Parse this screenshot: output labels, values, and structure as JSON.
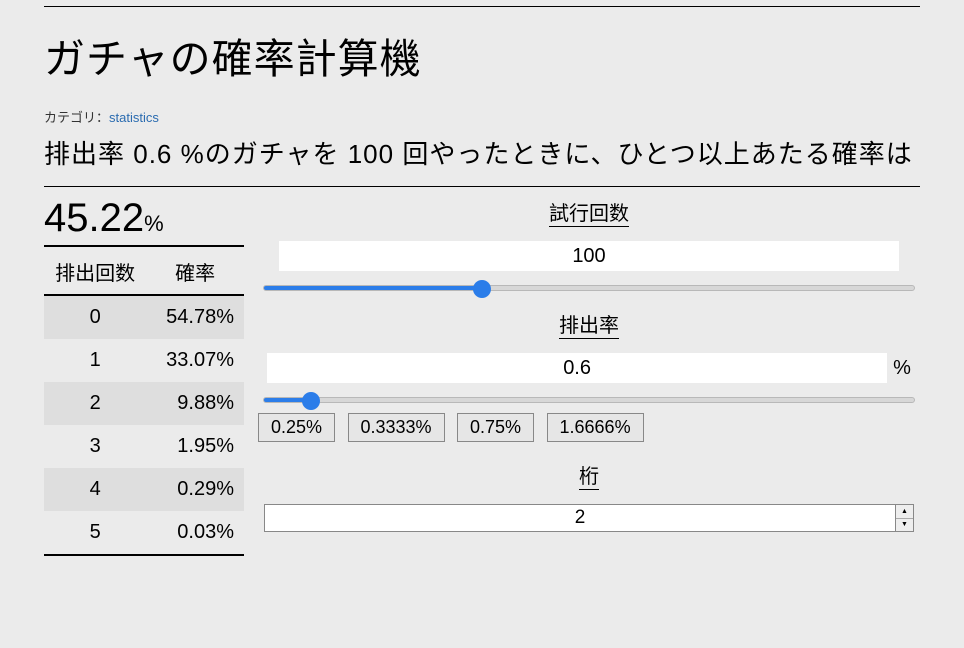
{
  "colors": {
    "page_bg": "#ebebeb",
    "link": "#2b6cb0",
    "slider_fill": "#2b7de9",
    "slider_track": "#d7d7d7",
    "stripe": "#dedede"
  },
  "title": "ガチャの確率計算機",
  "category": {
    "label": "カテゴリ：",
    "link_text": "statistics"
  },
  "summary": {
    "prefix": "排出率 ",
    "rate": "0.6",
    "rate_unit": " %のガチャを ",
    "trials": "100",
    "suffix": " 回やったときに、ひとつ以上あたる確率は"
  },
  "result": {
    "value": "45.22",
    "unit": "%"
  },
  "table": {
    "headers": {
      "count": "排出回数",
      "prob": "確率"
    },
    "rows": [
      {
        "n": "0",
        "p": "54.78%"
      },
      {
        "n": "1",
        "p": "33.07%"
      },
      {
        "n": "2",
        "p": "9.88%"
      },
      {
        "n": "3",
        "p": "1.95%"
      },
      {
        "n": "4",
        "p": "0.29%"
      },
      {
        "n": "5",
        "p": "0.03%"
      }
    ]
  },
  "controls": {
    "trials": {
      "label": "試行回数",
      "value": "100",
      "slider": {
        "min": 1,
        "max": 300,
        "value": 100,
        "fill_pct": 33
      }
    },
    "rate": {
      "label": "排出率",
      "value": "0.6",
      "unit": "%",
      "slider": {
        "min": 0,
        "max": 10,
        "value": 0.6,
        "fill_pct": 8
      },
      "presets": [
        "0.25%",
        "0.3333%",
        "0.75%",
        "1.6666%"
      ]
    },
    "digits": {
      "label": "桁",
      "value": "2"
    }
  }
}
